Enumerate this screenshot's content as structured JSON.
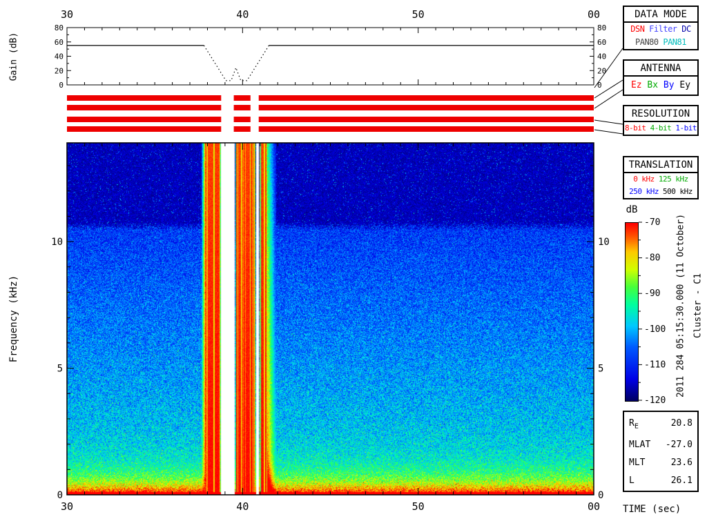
{
  "side_labels": {
    "timestamp": "2011 284 05:15:30.000 (11 October)",
    "spacecraft": "Cluster - C1"
  },
  "panels": [
    {
      "id": "data-mode",
      "title": "DATA MODE",
      "lines": [
        [
          {
            "t": "DSN",
            "c": "#ff0000"
          },
          {
            "t": "Filter",
            "c": "#4444ff"
          },
          {
            "t": "DC",
            "c": "#0000aa"
          }
        ],
        [
          {
            "t": "PAN80",
            "c": "#444444"
          },
          {
            "t": "PAN81",
            "c": "#00bbbb"
          }
        ]
      ]
    },
    {
      "id": "antenna",
      "title": "ANTENNA",
      "lines": [
        [
          {
            "t": "Ez",
            "c": "#ff0000"
          },
          {
            "t": "Bx",
            "c": "#00aa00"
          },
          {
            "t": "By",
            "c": "#0000ff"
          },
          {
            "t": "Ey",
            "c": "#000000"
          }
        ]
      ]
    },
    {
      "id": "resolution",
      "title": "RESOLUTION",
      "lines": [
        [
          {
            "t": "8-bit",
            "c": "#ff0000"
          },
          {
            "t": "4-bit",
            "c": "#00aa00"
          },
          {
            "t": "1-bit",
            "c": "#0000ff"
          }
        ]
      ]
    },
    {
      "id": "translation",
      "title": "TRANSLATION",
      "lines": [
        [
          {
            "t": "0 kHz",
            "c": "#ff0000"
          },
          {
            "t": "125 kHz",
            "c": "#00aa00"
          }
        ],
        [
          {
            "t": "250 kHz",
            "c": "#0000ff"
          },
          {
            "t": "500 kHz",
            "c": "#000000"
          }
        ]
      ]
    }
  ],
  "ephemeris": {
    "rows": [
      {
        "label": "R",
        "sub": "E",
        "value": "20.8"
      },
      {
        "label": "MLAT",
        "value": "-27.0"
      },
      {
        "label": "MLT",
        "value": "23.6"
      },
      {
        "label": "L",
        "value": "26.1"
      }
    ]
  },
  "telemetry_bars": {
    "rows": 4,
    "color": "#ee0000",
    "time_range": [
      30,
      60
    ],
    "gaps": [
      [
        38.78,
        39.5
      ],
      [
        40.45,
        40.92
      ]
    ]
  },
  "chart_data": [
    {
      "type": "line",
      "title": "Receiver gain vs time",
      "ylabel": "Gain (dB)",
      "xlim": [
        30,
        60
      ],
      "ylim": [
        0,
        80
      ],
      "x_ticks": {
        "major": [
          30,
          40,
          50,
          60
        ],
        "labels": [
          "30",
          "40",
          "50",
          "00"
        ],
        "minor_step": 1
      },
      "y_ticks": {
        "major": [
          0,
          20,
          40,
          60,
          80
        ],
        "labels": [
          "0",
          "20",
          "40",
          "60",
          "80"
        ],
        "minor_step": 10
      },
      "segments": [
        {
          "style": "solid",
          "points": [
            [
              30,
              55
            ],
            [
              37.8,
              55
            ]
          ]
        },
        {
          "style": "dotted",
          "points": [
            [
              37.8,
              55
            ],
            [
              39.05,
              6
            ],
            [
              39.35,
              6
            ],
            [
              39.62,
              24
            ],
            [
              39.9,
              6
            ],
            [
              40.25,
              6
            ],
            [
              41.5,
              55
            ]
          ]
        },
        {
          "style": "solid",
          "points": [
            [
              41.5,
              55
            ],
            [
              60,
              55
            ]
          ]
        }
      ]
    },
    {
      "type": "heatmap",
      "title": "Cluster WBD spectrogram",
      "xlabel": "TIME (sec)",
      "ylabel": "Frequency (kHz)",
      "xlim": [
        30,
        60
      ],
      "ylim": [
        0,
        13.9
      ],
      "x_ticks": {
        "major": [
          30,
          40,
          50,
          60
        ],
        "labels": [
          "30",
          "40",
          "50",
          "00"
        ],
        "minor_step": 1
      },
      "y_ticks": {
        "major": [
          0,
          5,
          10
        ],
        "labels": [
          "0",
          "5",
          "10"
        ],
        "minor_step": 1
      },
      "value_range_db": [
        -120,
        -70
      ],
      "colorbar": {
        "title": "dB",
        "tick_labels": [
          "-70",
          "-80",
          "-90",
          "-100",
          "-110",
          "-120"
        ]
      },
      "noise_model": {
        "background": "broadband noise strongest at low frequency; saturated red line at 0 kHz; yellow-green below ~1 kHz; blue speckle to ~10.6 kHz; near-floor dark navy above",
        "dark_above_khz": 10.6,
        "base_db_at_0khz": -66,
        "base_db_at_10khz": -108,
        "jitter_db": 7
      },
      "bands": [
        {
          "t0": 37.65,
          "t1": 37.95,
          "type": "onset"
        },
        {
          "t0": 37.95,
          "t1": 38.75,
          "type": "saturated",
          "db": -70
        },
        {
          "t0": 38.78,
          "t1": 39.55,
          "type": "gap"
        },
        {
          "t0": 39.58,
          "t1": 40.73,
          "type": "saturated",
          "db": -70
        },
        {
          "t0": 40.76,
          "t1": 40.95,
          "type": "gap"
        },
        {
          "t0": 40.98,
          "t1": 41.42,
          "type": "saturated",
          "db": -70
        },
        {
          "t0": 41.42,
          "t1": 41.9,
          "type": "decay"
        }
      ]
    }
  ]
}
